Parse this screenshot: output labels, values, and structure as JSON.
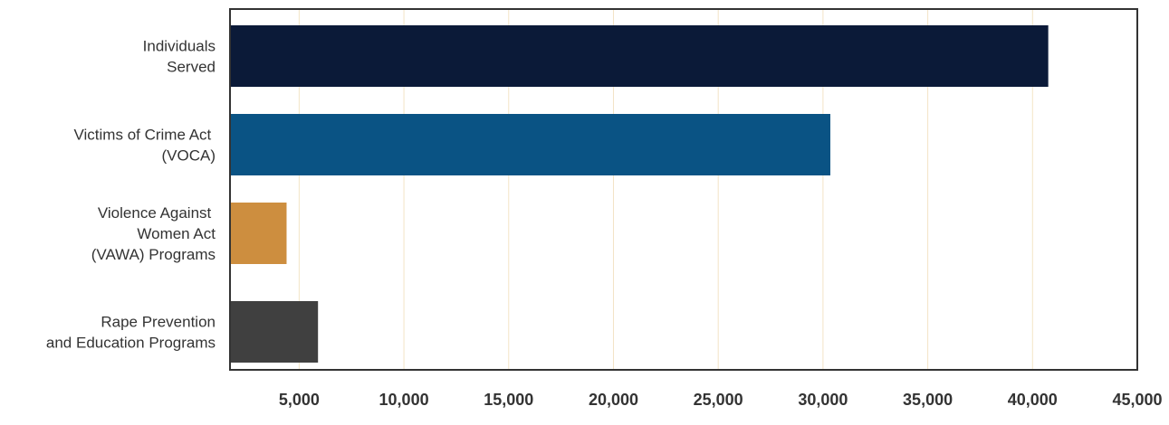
{
  "chart_data": {
    "type": "bar",
    "orientation": "horizontal",
    "title": "",
    "xlabel": "",
    "ylabel": "",
    "categories": [
      [
        "Individuals",
        "Served"
      ],
      [
        "Victims of Crime Act ",
        "(VOCA)"
      ],
      [
        "Violence Against ",
        "Women Act",
        "(VAWA) Programs"
      ],
      [
        "Rape Prevention",
        "and Education Programs"
      ]
    ],
    "values": [
      40750,
      30350,
      4400,
      5900
    ],
    "colors": [
      "#0b1a38",
      "#0a5384",
      "#cd8e3f",
      "#404040"
    ],
    "xlim": [
      1700,
      45000
    ],
    "xticks": [
      5000,
      10000,
      15000,
      20000,
      25000,
      30000,
      35000,
      40000,
      45000
    ],
    "xtick_labels": [
      "5,000",
      "10,000",
      "15,000",
      "20,000",
      "25,000",
      "30,000",
      "35,000",
      "40,000",
      "45,000"
    ],
    "grid": true,
    "grid_color": "#f3e4c6",
    "legend": "none"
  }
}
